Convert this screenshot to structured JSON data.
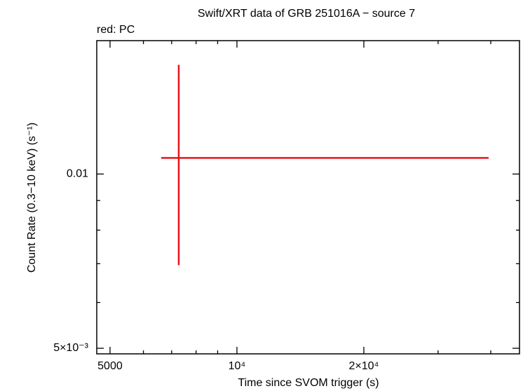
{
  "chart_data": {
    "type": "errorbar",
    "title": "Swift/XRT data of GRB 251016A − source 7",
    "subtitle": "red: PC",
    "xlabel": "Time since SVOM trigger (s)",
    "ylabel": "Count Rate (0.3−10 keV) (s⁻¹)",
    "xscale": "log",
    "yscale": "log",
    "xlim": [
      4650,
      46800
    ],
    "ylim": [
      0.00489,
      0.017
    ],
    "xticks": [
      {
        "value": 5000,
        "label": "5000"
      },
      {
        "value": 10000,
        "label": "10⁴"
      },
      {
        "value": 20000,
        "label": "2×10⁴"
      }
    ],
    "xminor": [
      6000,
      7000,
      8000,
      9000,
      30000,
      40000
    ],
    "yticks": [
      {
        "value": 0.005,
        "label": "5×10⁻³"
      },
      0.01
    ],
    "yminor": [
      0.006,
      0.007,
      0.008,
      0.009
    ],
    "series": [
      {
        "color": "#e8141a",
        "x": [
          7277
        ],
        "x_minus": [
          664
        ],
        "x_plus": [
          32263
        ],
        "values": [
          0.01066
        ],
        "y_minus": [
          0.0037
        ],
        "y_plus": [
          0.00478
        ]
      }
    ]
  }
}
